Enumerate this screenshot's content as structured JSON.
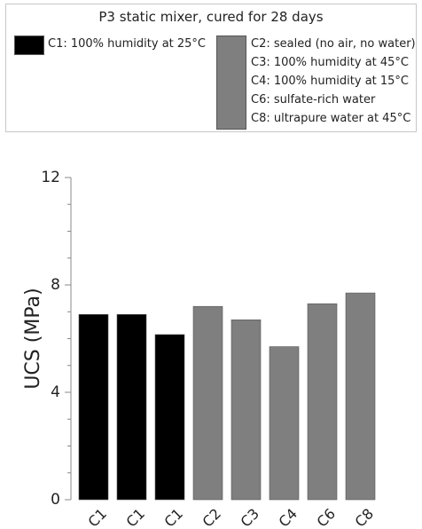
{
  "legend": {
    "title": "P3 static mixer, cured for 28 days",
    "entries": [
      {
        "label": "C1: 100% humidity at 25°C",
        "color": "#000000"
      },
      {
        "label": "C2: sealed (no air, no water)",
        "color": "#7f7f7f"
      },
      {
        "label": "C3: 100% humidity at 45°C",
        "color": "#7f7f7f"
      },
      {
        "label": "C4: 100% humidity at 15°C",
        "color": "#7f7f7f"
      },
      {
        "label": "C6: sulfate-rich water",
        "color": "#7f7f7f"
      },
      {
        "label": "C8: ultrapure water at 45°C",
        "color": "#7f7f7f"
      }
    ]
  },
  "chart_data": {
    "type": "bar",
    "title": "P3 static mixer, cured for 28 days",
    "xlabel": "",
    "ylabel": "UCS (MPa)",
    "ylim": [
      0,
      12
    ],
    "yticks": [
      "0",
      "4",
      "8",
      "12"
    ],
    "grid": false,
    "legend_position": "top",
    "categories": [
      "C1",
      "C1",
      "C1",
      "C2",
      "C3",
      "C4",
      "C6",
      "C8"
    ],
    "values": [
      6.9,
      6.9,
      6.15,
      7.2,
      6.7,
      5.7,
      7.3,
      7.7
    ],
    "colors": [
      "#000000",
      "#000000",
      "#000000",
      "#7f7f7f",
      "#7f7f7f",
      "#7f7f7f",
      "#7f7f7f",
      "#7f7f7f"
    ]
  }
}
